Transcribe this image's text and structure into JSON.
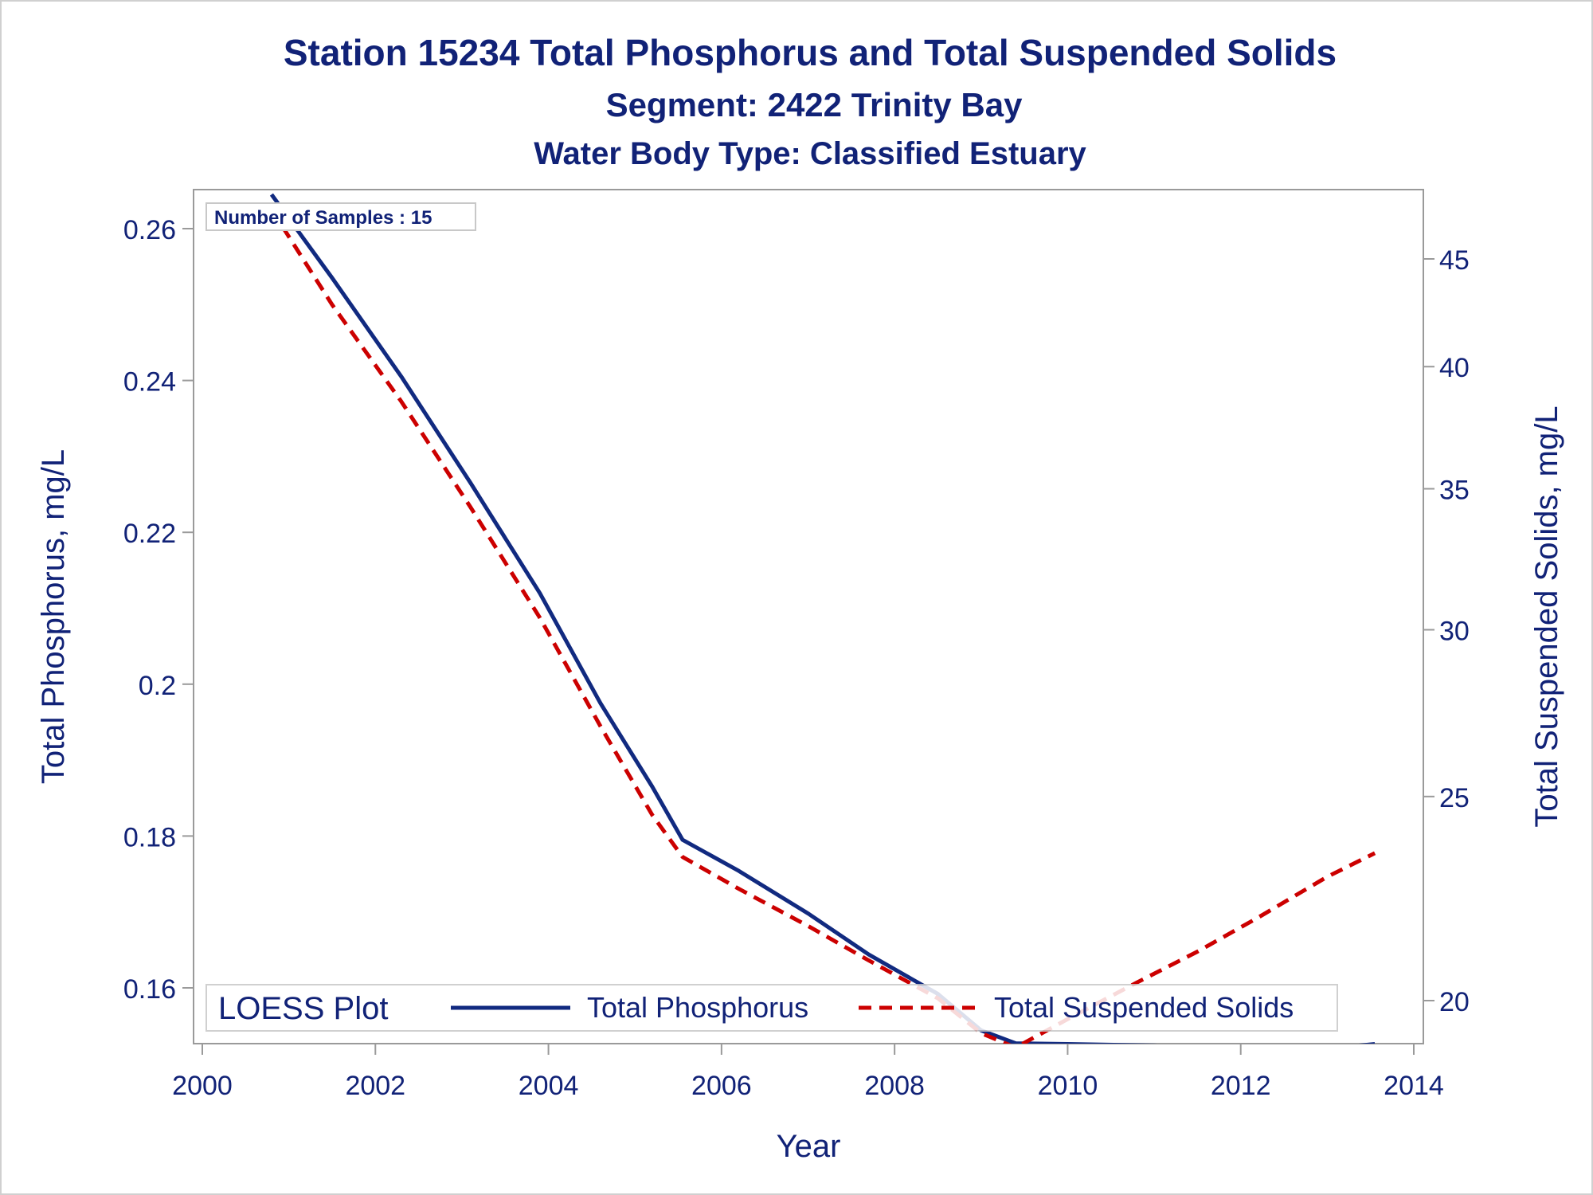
{
  "chart_data": {
    "type": "line",
    "title": "Station 15234  Total Phosphorus and Total Suspended Solids",
    "subtitle": "Segment: 2422  Trinity Bay",
    "subtitle2": "Water Body Type: Classified Estuary",
    "xlabel": "Year",
    "ylabel": "Total Phosphorus, mg/L",
    "y2label": "Total Suspended Solids, mg/L",
    "xlim": [
      2000,
      2014
    ],
    "ylim": [
      0.155,
      0.2645
    ],
    "y2lim": [
      19.0,
      47.5
    ],
    "y2_scale": "log",
    "x_ticks": [
      "2000",
      "2002",
      "2004",
      "2006",
      "2008",
      "2010",
      "2012",
      "2014"
    ],
    "y_ticks": [
      "0.16",
      "0.18",
      "0.2",
      "0.22",
      "0.24",
      "0.26"
    ],
    "y2_ticks": [
      "20",
      "25",
      "30",
      "35",
      "40",
      "45"
    ],
    "annotation": "Number of Samples : 15",
    "legend": {
      "title": "LOESS Plot",
      "position": "bottom-inside",
      "items": [
        "Total Phosphorus",
        "Total Suspended Solids"
      ]
    },
    "grid": false,
    "colors": {
      "phosphorus": "#112a80",
      "tss": "#cc0000",
      "text": "#112277",
      "frame": "#9a9a9a"
    },
    "series": [
      {
        "name": "Total Phosphorus",
        "axis": "left",
        "style": "solid",
        "x": [
          2000.8,
          2001.5,
          2002.3,
          2003.1,
          2003.9,
          2004.6,
          2005.2,
          2005.55,
          2006.2,
          2007.0,
          2007.7,
          2008.5,
          2009.0,
          2009.4,
          2010.0,
          2011.0,
          2012.0,
          2012.8,
          2013.2,
          2013.55
        ],
        "values": [
          0.2645,
          0.2535,
          0.2405,
          0.2265,
          0.212,
          0.1975,
          0.1865,
          0.1795,
          0.1754,
          0.1698,
          0.1644,
          0.1592,
          0.1544,
          0.1527,
          0.1526,
          0.1524,
          0.1521,
          0.152,
          0.1522,
          0.1526
        ]
      },
      {
        "name": "Total Suspended Solids",
        "axis": "right",
        "style": "dashed",
        "x": [
          2000.8,
          2001.5,
          2002.3,
          2003.1,
          2003.9,
          2004.6,
          2005.2,
          2005.55,
          2006.2,
          2007.0,
          2007.7,
          2008.5,
          2009.0,
          2009.4,
          2010.0,
          2010.8,
          2011.5,
          2012.2,
          2013.0,
          2013.55
        ],
        "values": [
          47.5,
          42.8,
          38.5,
          34.3,
          30.4,
          27.0,
          24.5,
          23.4,
          22.6,
          21.7,
          20.9,
          20.05,
          19.3,
          19.0,
          19.6,
          20.4,
          21.1,
          21.9,
          22.9,
          23.5
        ]
      }
    ]
  }
}
